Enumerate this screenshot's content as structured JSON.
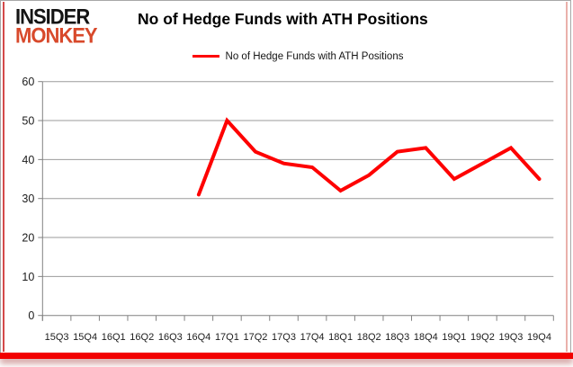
{
  "frame": {
    "accent_red": "#f20000",
    "border_grey": "#a8a8a8",
    "inner_left_line": "#d34a4a",
    "inner_right_line": "#eab1ab"
  },
  "logo": {
    "line1": "INSIDER",
    "line2": "MONKEY",
    "line1_color": "#141414",
    "line2_color": "#d8492b"
  },
  "header": {
    "title": "No of Hedge Funds with ATH Positions"
  },
  "legend": {
    "label": "No of Hedge Funds with ATH Positions",
    "swatch_color": "#fe0000"
  },
  "chart_data": {
    "type": "line",
    "title": "No of Hedge Funds with ATH Positions",
    "categories": [
      "15Q3",
      "15Q4",
      "16Q1",
      "16Q2",
      "16Q3",
      "16Q4",
      "17Q1",
      "17Q2",
      "17Q3",
      "17Q4",
      "18Q1",
      "18Q2",
      "18Q3",
      "18Q4",
      "19Q1",
      "19Q2",
      "19Q3",
      "19Q4"
    ],
    "series": [
      {
        "name": "No of Hedge Funds with ATH Positions",
        "color": "#fe0000",
        "values": [
          null,
          null,
          null,
          null,
          null,
          31,
          50,
          42,
          39,
          38,
          32,
          36,
          42,
          43,
          35,
          39,
          43,
          35
        ]
      }
    ],
    "xlabel": "",
    "ylabel": "",
    "ylim": [
      0,
      60
    ],
    "yticks": [
      0,
      10,
      20,
      30,
      40,
      50,
      60
    ],
    "grid": true,
    "legend_position": "top-center",
    "grid_color": "#9b9b9b",
    "axis_color": "#808080"
  }
}
